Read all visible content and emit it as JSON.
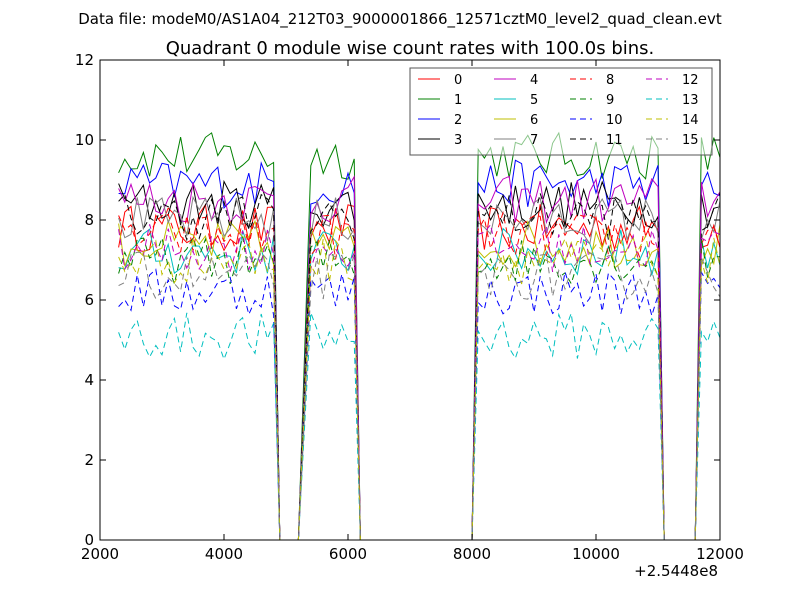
{
  "chart_data": {
    "type": "line",
    "suptitle": "Data file: modeM0/AS1A04_212T03_9000001866_12571cztM0_level2_quad_clean.evt",
    "title": "Quadrant 0 module wise count rates with 100.0s bins.",
    "xlabel": "",
    "ylabel": "",
    "x_offset_label": "+2.5448e8",
    "xlim": [
      2000,
      12000
    ],
    "ylim": [
      0,
      12
    ],
    "x_ticks": [
      2000,
      4000,
      6000,
      8000,
      10000,
      12000
    ],
    "y_ticks": [
      0,
      2,
      4,
      6,
      8,
      10,
      12
    ],
    "x_tick_labels": [
      "2000",
      "4000",
      "6000",
      "8000",
      "10000",
      "12000"
    ],
    "y_tick_labels": [
      "0",
      "2",
      "4",
      "6",
      "8",
      "10",
      "12"
    ],
    "legend_position": "top-right",
    "segments": [
      [
        2300,
        4800
      ],
      [
        5400,
        6100
      ],
      [
        8100,
        11000
      ],
      [
        11700,
        12000
      ]
    ],
    "drops": [
      4900,
      5200,
      6200,
      8000,
      11100,
      11600
    ],
    "series": [
      {
        "name": "0",
        "color": "#ff0000",
        "dash": "solid",
        "level": 7.8
      },
      {
        "name": "1",
        "color": "#008000",
        "dash": "solid",
        "level": 9.6
      },
      {
        "name": "2",
        "color": "#0000ff",
        "dash": "solid",
        "level": 8.9
      },
      {
        "name": "3",
        "color": "#000000",
        "dash": "solid",
        "level": 8.4
      },
      {
        "name": "4",
        "color": "#bf00bf",
        "dash": "solid",
        "level": 8.5
      },
      {
        "name": "5",
        "color": "#00bfbf",
        "dash": "solid",
        "level": 7.2
      },
      {
        "name": "6",
        "color": "#bfbf00",
        "dash": "solid",
        "level": 7.4
      },
      {
        "name": "7",
        "color": "#808080",
        "dash": "solid",
        "level": 8.0
      },
      {
        "name": "8",
        "color": "#ff0000",
        "dash": "dashed",
        "level": 7.6
      },
      {
        "name": "9",
        "color": "#008000",
        "dash": "dashed",
        "level": 7.0
      },
      {
        "name": "10",
        "color": "#0000ff",
        "dash": "dashed",
        "level": 6.2
      },
      {
        "name": "11",
        "color": "#000000",
        "dash": "dashed",
        "level": 8.1
      },
      {
        "name": "12",
        "color": "#bf00bf",
        "dash": "dashed",
        "level": 7.3
      },
      {
        "name": "13",
        "color": "#00bfbf",
        "dash": "dashed",
        "level": 5.1
      },
      {
        "name": "14",
        "color": "#bfbf00",
        "dash": "dashed",
        "level": 7.0
      },
      {
        "name": "15",
        "color": "#808080",
        "dash": "dashed",
        "level": 6.6
      }
    ]
  }
}
